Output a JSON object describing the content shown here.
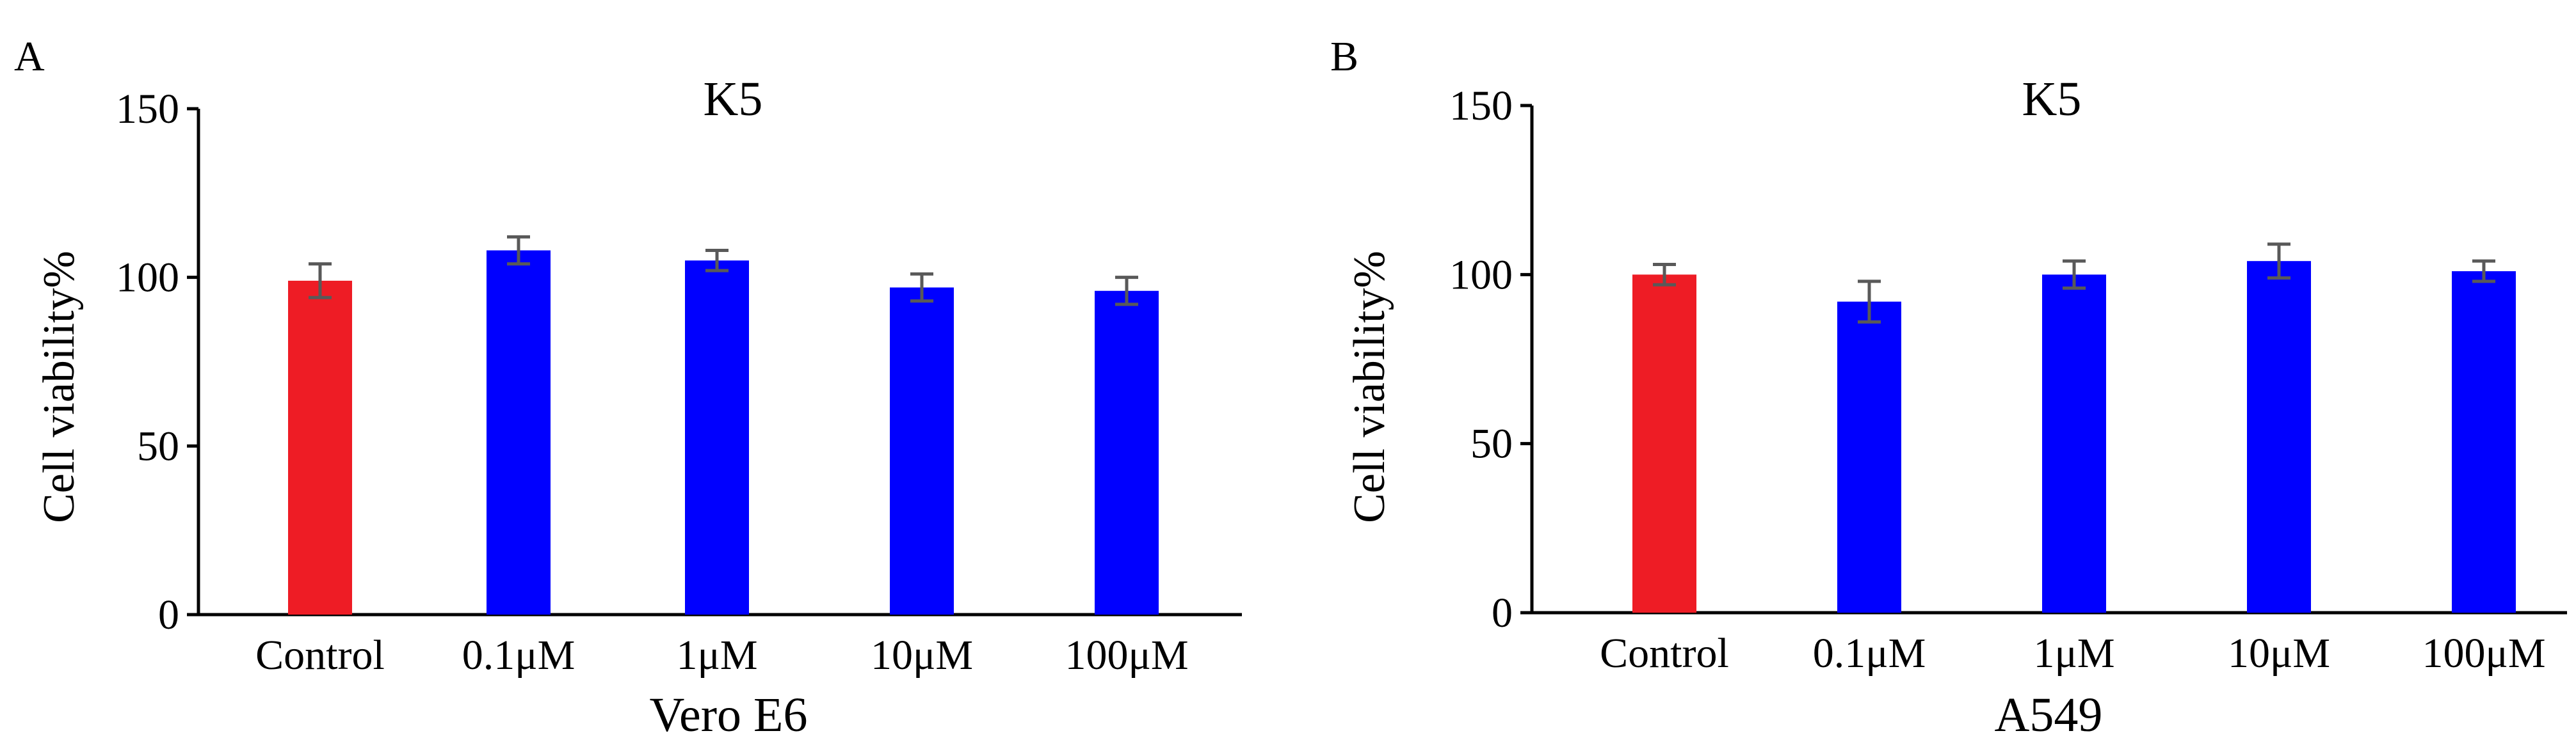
{
  "colors": {
    "control": "#ee1c25",
    "treatment": "#0000ff",
    "error_bar": "#595959",
    "axis": "#000000",
    "background": "#ffffff"
  },
  "chart_data": [
    {
      "panel_label": "A",
      "type": "bar",
      "title": "K5",
      "xlabel": "Vero E6",
      "ylabel": "Cell viability%",
      "ylim": [
        0,
        150
      ],
      "yticks": [
        0,
        50,
        100,
        150
      ],
      "grid": false,
      "categories": [
        "Control",
        "0.1μM",
        "1μM",
        "10μM",
        "100μM"
      ],
      "values": [
        99,
        108,
        105,
        97,
        96
      ],
      "errors": [
        5,
        4,
        3,
        4,
        4
      ],
      "bar_colors": [
        "#ee1c25",
        "#0000ff",
        "#0000ff",
        "#0000ff",
        "#0000ff"
      ]
    },
    {
      "panel_label": "B",
      "type": "bar",
      "title": "K5",
      "xlabel": "A549",
      "ylabel": "Cell viability%",
      "ylim": [
        0,
        150
      ],
      "yticks": [
        0,
        50,
        100,
        150
      ],
      "grid": false,
      "categories": [
        "Control",
        "0.1μM",
        "1μM",
        "10μM",
        "100μM"
      ],
      "values": [
        100,
        92,
        100,
        104,
        101
      ],
      "errors": [
        3,
        6,
        4,
        5,
        3
      ],
      "bar_colors": [
        "#ee1c25",
        "#0000ff",
        "#0000ff",
        "#0000ff",
        "#0000ff"
      ]
    }
  ]
}
